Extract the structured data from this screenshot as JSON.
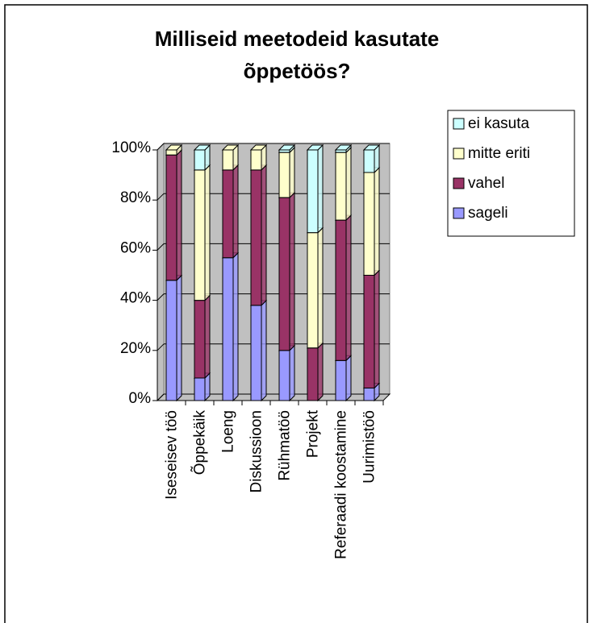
{
  "chart_data": {
    "type": "bar",
    "stacked": true,
    "title": [
      "Milliseid meetodeid kasutate",
      "õppetöös?"
    ],
    "categories": [
      "Iseseisev töö",
      "Õppekäik",
      "Loeng",
      "Diskussioon",
      "Rühmatöö",
      "Projekt",
      "Referaadi koostamine",
      "Uurimistöö"
    ],
    "series": [
      {
        "name": "sageli",
        "color": "#9999ff",
        "values": [
          48,
          9,
          57,
          38,
          20,
          0,
          16,
          5
        ]
      },
      {
        "name": "vahel",
        "color": "#993366",
        "values": [
          50,
          31,
          35,
          54,
          61,
          21,
          56,
          45
        ]
      },
      {
        "name": "mitte eriti",
        "color": "#ffffcc",
        "values": [
          2,
          52,
          8,
          8,
          18,
          46,
          27,
          41
        ]
      },
      {
        "name": "ei kasuta",
        "color": "#ccffff",
        "values": [
          0,
          8,
          0,
          0,
          1,
          33,
          1,
          9
        ]
      }
    ],
    "ylim": [
      0,
      100
    ],
    "yticks": [
      {
        "value": 0,
        "label": "0%"
      },
      {
        "value": 20,
        "label": "20%"
      },
      {
        "value": 40,
        "label": "40%"
      },
      {
        "value": 60,
        "label": "60%"
      },
      {
        "value": 80,
        "label": "80%"
      },
      {
        "value": 100,
        "label": "100%"
      }
    ],
    "grid": true,
    "legend": "right"
  }
}
